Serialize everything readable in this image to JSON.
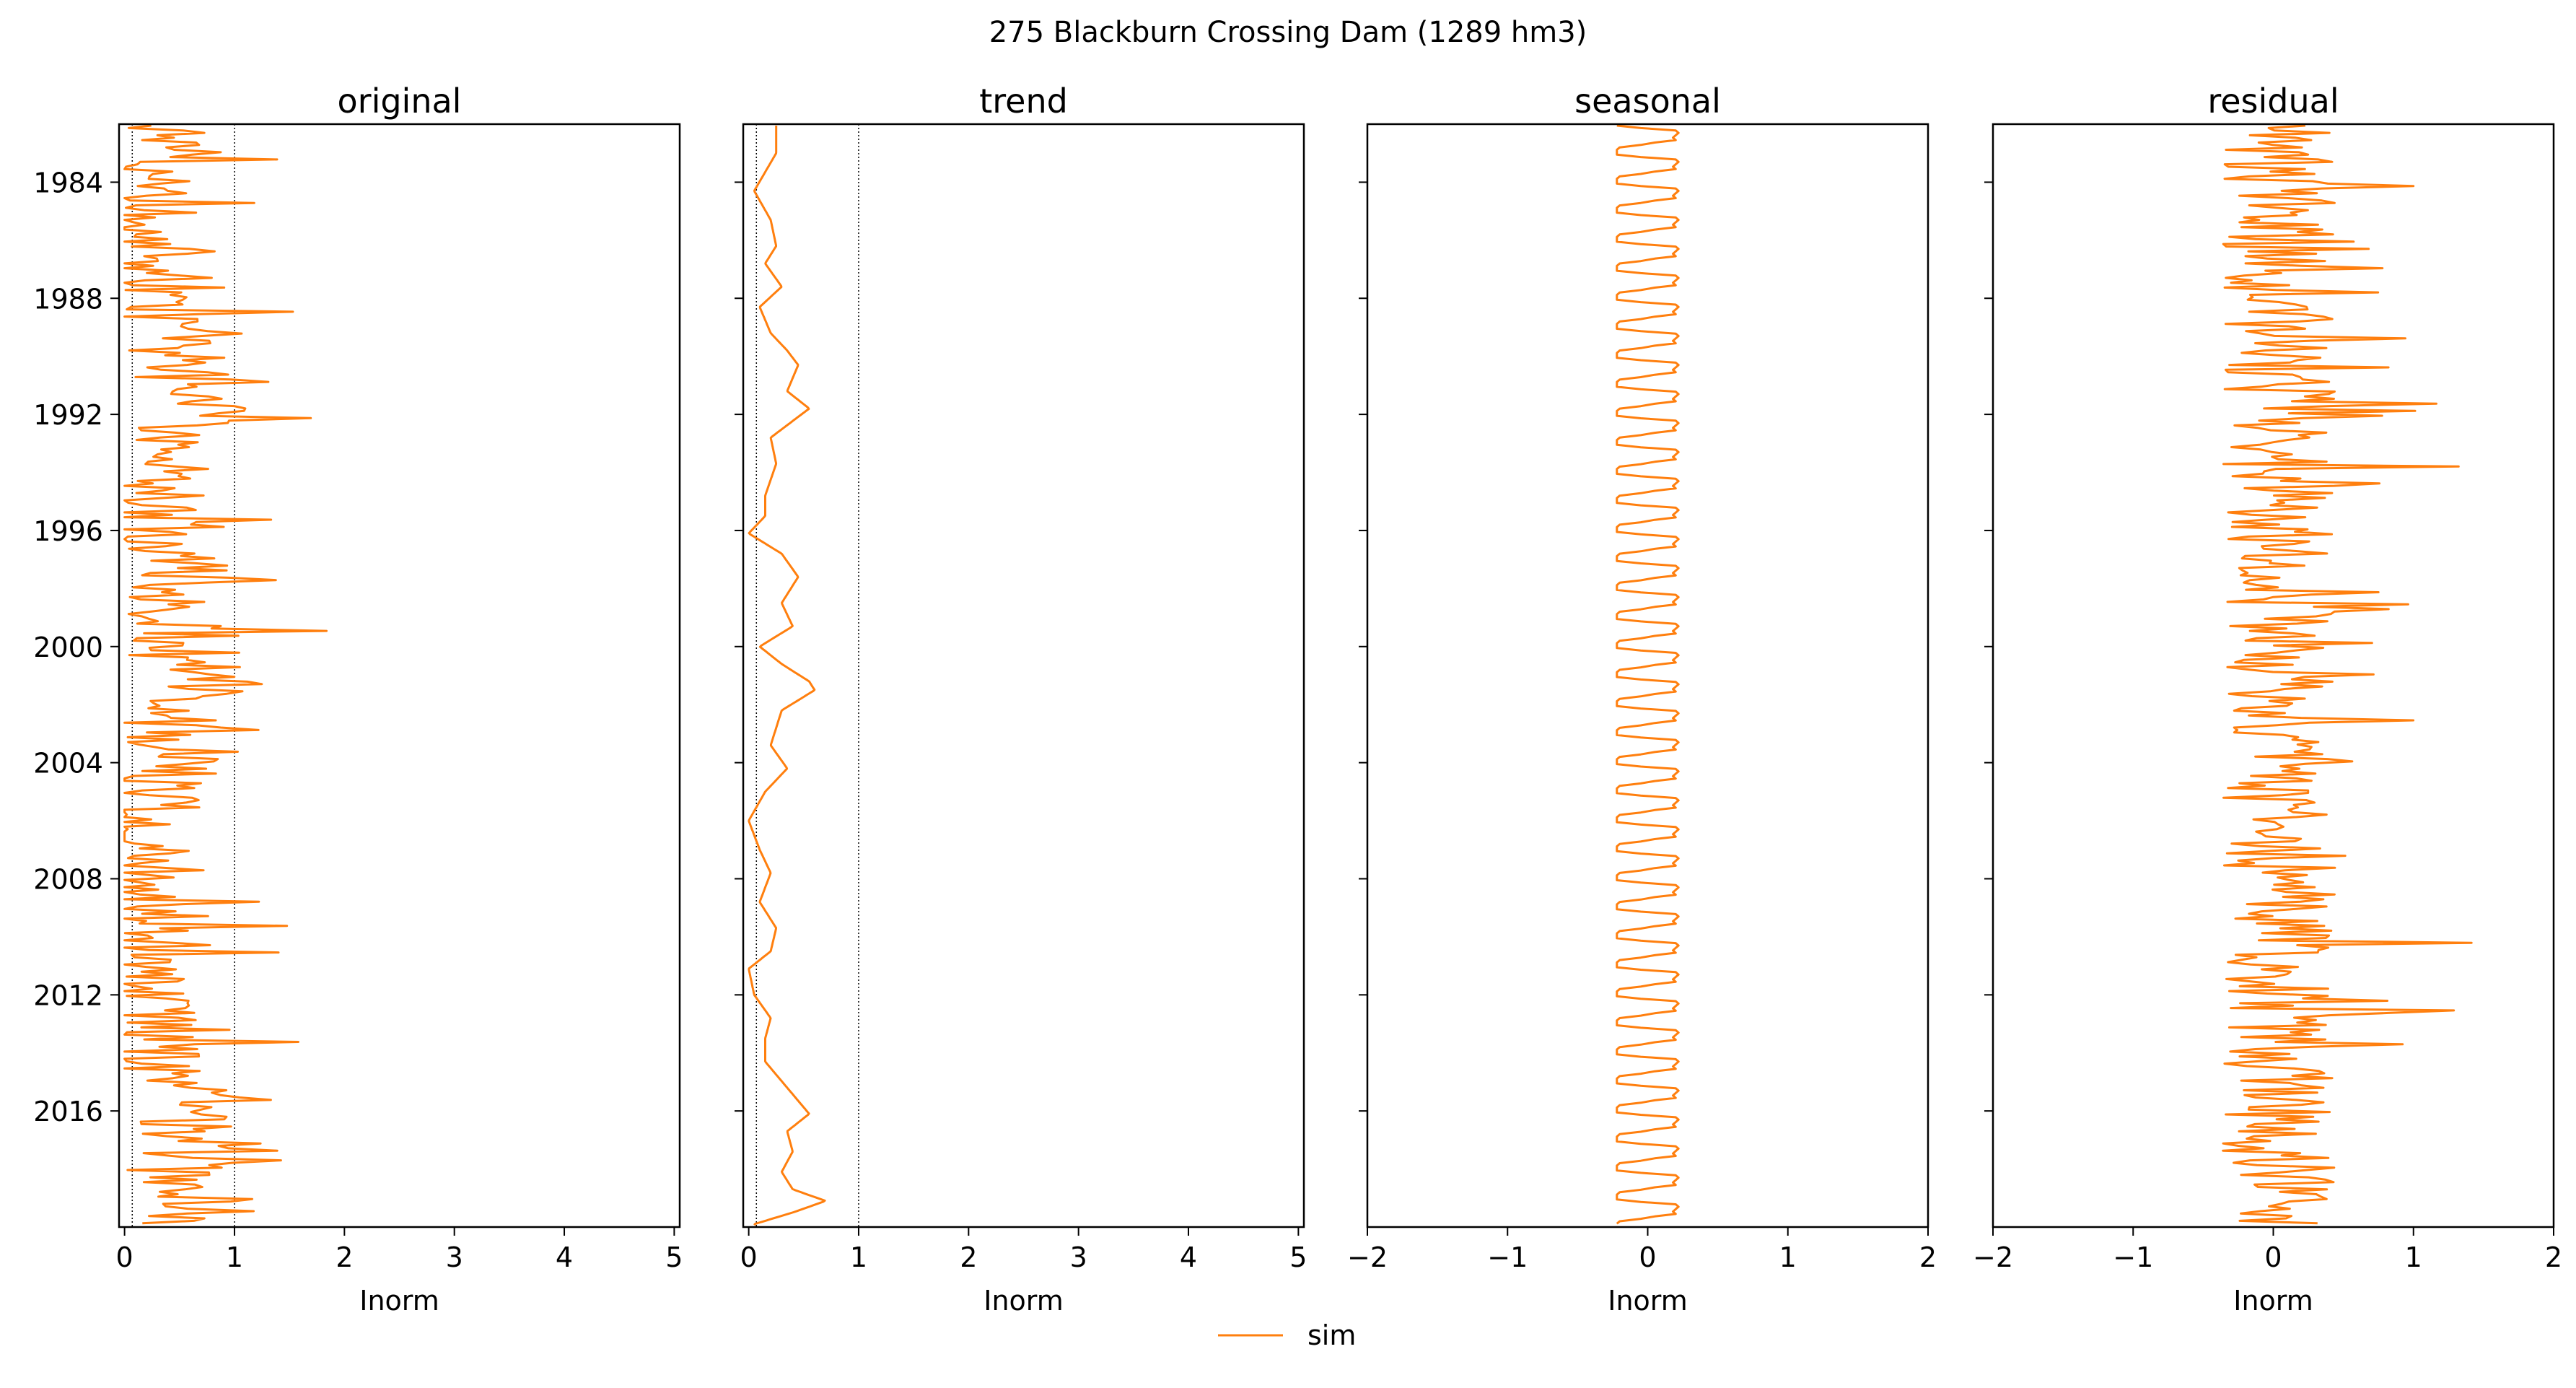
{
  "figure": {
    "suptitle": "275  Blackburn Crossing Dam (1289 hm3)",
    "legend_label": "sim",
    "line_color": "#ff7f0e",
    "ref_line_color": "#000000"
  },
  "chart_data": [
    {
      "type": "line",
      "title": "original",
      "xlabel": "Inorm",
      "ylabel": "",
      "xlim": [
        -0.05,
        5.05
      ],
      "ylim": [
        1982.0,
        2020.0
      ],
      "y_inverted": true,
      "xticks": [
        0,
        1,
        2,
        3,
        4,
        5
      ],
      "xtick_labels": [
        "0",
        "1",
        "2",
        "3",
        "4",
        "5"
      ],
      "yticks": [
        1984,
        1988,
        1992,
        1996,
        2000,
        2004,
        2008,
        2012,
        2016
      ],
      "ytick_labels": [
        "1984",
        "1988",
        "1992",
        "1996",
        "2000",
        "2004",
        "2008",
        "2012",
        "2016"
      ],
      "ref_lines": [
        0.07,
        1.0
      ],
      "series": [
        {
          "name": "sim",
          "gen": "original",
          "range": [
            0.0,
            2.5
          ],
          "step_years": 0.0833
        }
      ]
    },
    {
      "type": "line",
      "title": "trend",
      "xlabel": "Inorm",
      "ylabel": "",
      "xlim": [
        -0.05,
        5.05
      ],
      "ylim": [
        1982.0,
        2020.0
      ],
      "y_inverted": true,
      "xticks": [
        0,
        1,
        2,
        3,
        4,
        5
      ],
      "xtick_labels": [
        "0",
        "1",
        "2",
        "3",
        "4",
        "5"
      ],
      "yticks": [
        1984,
        1988,
        1992,
        1996,
        2000,
        2004,
        2008,
        2012,
        2016
      ],
      "ytick_labels": [],
      "ref_lines": [
        0.07,
        1.0
      ],
      "series": [
        {
          "name": "sim",
          "gen": "trend",
          "anchors": [
            [
              1982.1,
              0.25
            ],
            [
              1983.0,
              0.25
            ],
            [
              1984.3,
              0.05
            ],
            [
              1985.3,
              0.2
            ],
            [
              1986.2,
              0.25
            ],
            [
              1986.8,
              0.15
            ],
            [
              1987.6,
              0.3
            ],
            [
              1988.3,
              0.1
            ],
            [
              1989.2,
              0.2
            ],
            [
              1989.8,
              0.35
            ],
            [
              1990.3,
              0.45
            ],
            [
              1991.2,
              0.35
            ],
            [
              1991.8,
              0.55
            ],
            [
              1992.8,
              0.2
            ],
            [
              1993.7,
              0.25
            ],
            [
              1994.8,
              0.15
            ],
            [
              1995.5,
              0.15
            ],
            [
              1996.1,
              0.0
            ],
            [
              1996.8,
              0.3
            ],
            [
              1997.6,
              0.45
            ],
            [
              1998.5,
              0.3
            ],
            [
              1999.3,
              0.4
            ],
            [
              2000.0,
              0.1
            ],
            [
              2000.6,
              0.3
            ],
            [
              2001.2,
              0.55
            ],
            [
              2001.5,
              0.6
            ],
            [
              2002.2,
              0.3
            ],
            [
              2003.4,
              0.2
            ],
            [
              2004.2,
              0.35
            ],
            [
              2005.0,
              0.15
            ],
            [
              2006.0,
              0.0
            ],
            [
              2007.0,
              0.1
            ],
            [
              2007.8,
              0.2
            ],
            [
              2008.8,
              0.1
            ],
            [
              2009.7,
              0.25
            ],
            [
              2010.5,
              0.2
            ],
            [
              2011.1,
              0.0
            ],
            [
              2012.0,
              0.05
            ],
            [
              2012.8,
              0.2
            ],
            [
              2013.5,
              0.15
            ],
            [
              2014.3,
              0.15
            ],
            [
              2015.2,
              0.35
            ],
            [
              2016.1,
              0.55
            ],
            [
              2016.7,
              0.35
            ],
            [
              2017.4,
              0.4
            ],
            [
              2018.1,
              0.3
            ],
            [
              2018.7,
              0.4
            ],
            [
              2019.1,
              0.7
            ],
            [
              2019.5,
              0.4
            ],
            [
              2019.9,
              0.05
            ]
          ]
        }
      ]
    },
    {
      "type": "line",
      "title": "seasonal",
      "xlabel": "Inorm",
      "ylabel": "",
      "xlim": [
        -2.0,
        2.0
      ],
      "ylim": [
        1982.0,
        2020.0
      ],
      "y_inverted": true,
      "xticks": [
        -2,
        -1,
        0,
        1,
        2
      ],
      "xtick_labels": [
        "−2",
        "−1",
        "0",
        "1",
        "2"
      ],
      "yticks": [
        1984,
        1988,
        1992,
        1996,
        2000,
        2004,
        2008,
        2012,
        2016
      ],
      "ytick_labels": [],
      "ref_lines": [],
      "series": [
        {
          "name": "sim",
          "gen": "seasonal",
          "monthly_pattern": [
            -0.22,
            -0.22,
            -0.05,
            0.2,
            0.22,
            0.2,
            0.18,
            0.2,
            0.05,
            -0.05,
            -0.2,
            -0.22
          ]
        }
      ]
    },
    {
      "type": "line",
      "title": "residual",
      "xlabel": "Inorm",
      "ylabel": "",
      "xlim": [
        -2.0,
        2.0
      ],
      "ylim": [
        1982.0,
        2020.0
      ],
      "y_inverted": true,
      "xticks": [
        -2,
        -1,
        0,
        1,
        2
      ],
      "xtick_labels": [
        "−2",
        "−1",
        "0",
        "1",
        "2"
      ],
      "yticks": [
        1984,
        1988,
        1992,
        1996,
        2000,
        2004,
        2008,
        2012,
        2016
      ],
      "ytick_labels": [],
      "ref_lines": [],
      "series": [
        {
          "name": "sim",
          "gen": "residual",
          "range": [
            -0.6,
            1.7
          ],
          "step_years": 0.0833
        }
      ]
    }
  ]
}
